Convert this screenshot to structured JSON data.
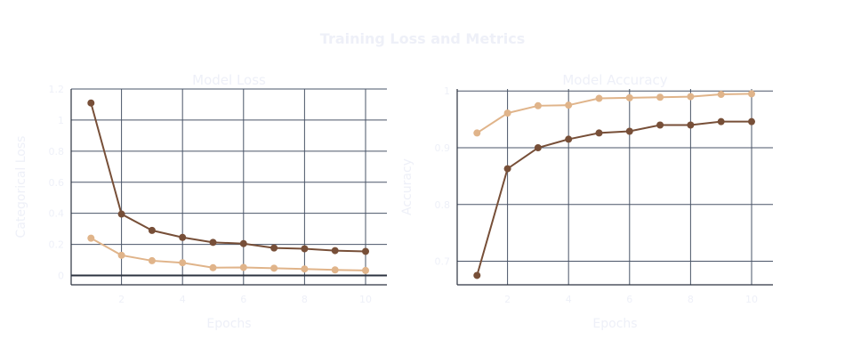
{
  "title": "Training Loss and Metrics",
  "colors": {
    "series_dark": "#774f38",
    "series_light": "#e0b48a",
    "text": "#eef0f8",
    "grid": "#4a5568"
  },
  "chart_data": [
    {
      "type": "line",
      "title": "Model Loss",
      "xlabel": "Epochs",
      "ylabel": "Categorical Loss",
      "x": [
        1,
        2,
        3,
        4,
        5,
        6,
        7,
        8,
        9,
        10
      ],
      "xlim": [
        0.35,
        10.7
      ],
      "ylim": [
        -0.06,
        1.2
      ],
      "x_ticks": [
        2,
        4,
        6,
        8,
        10
      ],
      "y_ticks": [
        0,
        0.2,
        0.4,
        0.6,
        0.8,
        1,
        1.2
      ],
      "grid": true,
      "series": [
        {
          "color": "#774f38",
          "values": [
            1.11,
            0.395,
            0.29,
            0.245,
            0.213,
            0.205,
            0.177,
            0.172,
            0.16,
            0.155
          ]
        },
        {
          "color": "#e0b48a",
          "values": [
            0.24,
            0.13,
            0.095,
            0.082,
            0.05,
            0.052,
            0.047,
            0.042,
            0.036,
            0.032
          ]
        }
      ]
    },
    {
      "type": "line",
      "title": "Model Accuracy",
      "xlabel": "Epochs",
      "ylabel": "Accuracy",
      "x": [
        1,
        2,
        3,
        4,
        5,
        6,
        7,
        8,
        9,
        10
      ],
      "xlim": [
        0.35,
        10.7
      ],
      "ylim": [
        0.6585,
        1.0035
      ],
      "x_ticks": [
        2,
        4,
        6,
        8,
        10
      ],
      "y_ticks": [
        0.7,
        0.8,
        0.9,
        1
      ],
      "y_tick_labels": [
        "0.7",
        "0.8",
        "0.9",
        "1"
      ],
      "grid": true,
      "series": [
        {
          "color": "#774f38",
          "values": [
            0.675,
            0.863,
            0.9,
            0.915,
            0.926,
            0.929,
            0.94,
            0.94,
            0.946,
            0.946
          ]
        },
        {
          "color": "#e0b48a",
          "values": [
            0.926,
            0.961,
            0.974,
            0.975,
            0.987,
            0.988,
            0.989,
            0.99,
            0.994,
            0.995
          ]
        }
      ]
    }
  ]
}
